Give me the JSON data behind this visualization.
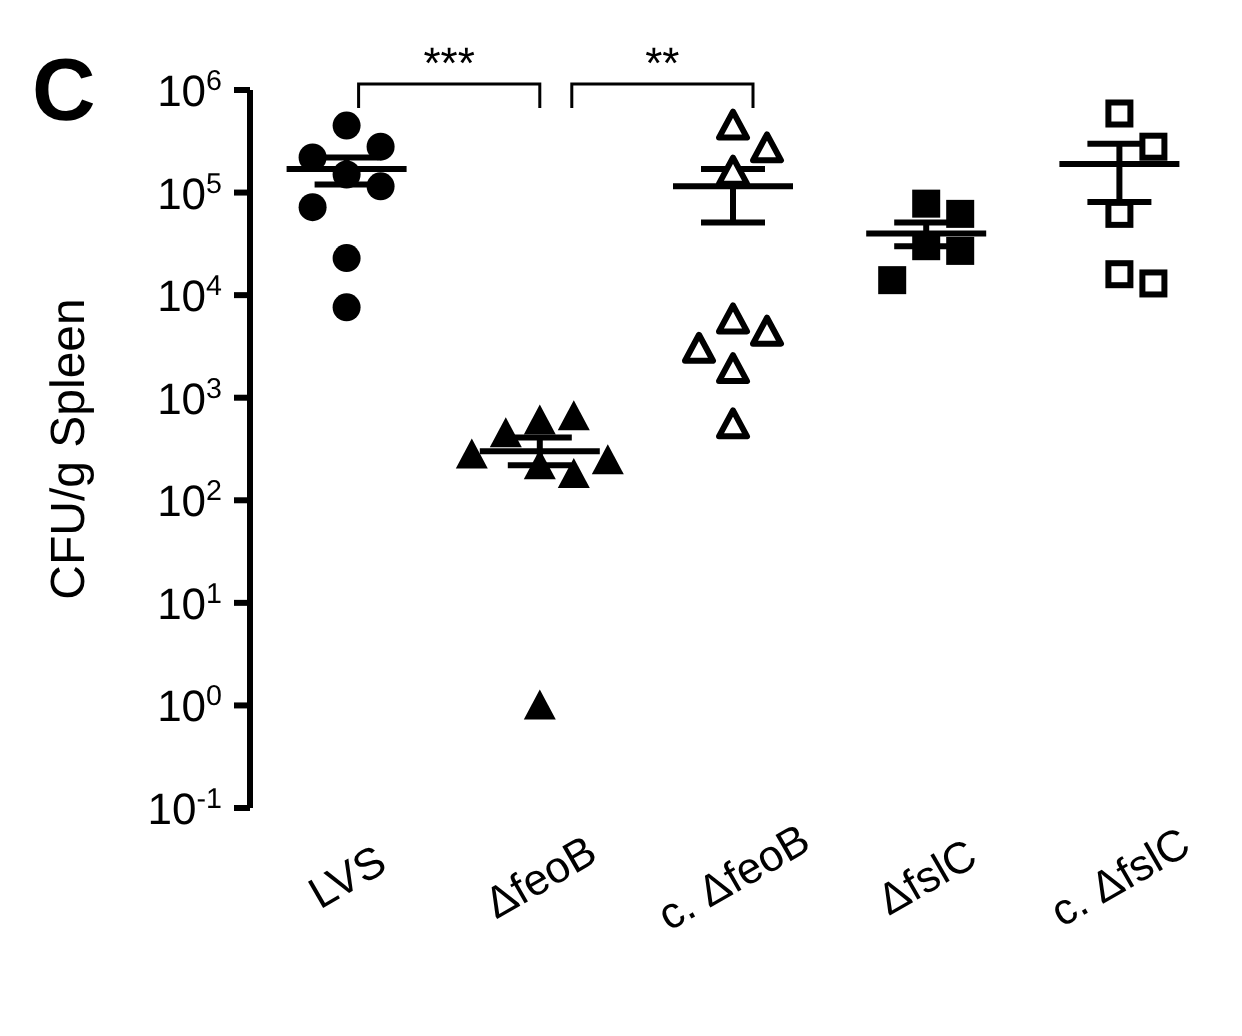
{
  "chart_data": {
    "type": "scatter",
    "title": "C",
    "ylabel": "CFU/g Spleen",
    "categories": [
      "LVS",
      "ΔfeoB",
      "c. ΔfeoB",
      "ΔfslC",
      "c. ΔfslC"
    ],
    "series": [
      {
        "color": "#000000",
        "marker": "circle",
        "x": [
          "LVS",
          "LVS",
          "LVS",
          "LVS",
          "LVS",
          "LVS",
          "LVS",
          "LVS"
        ],
        "values": [
          450000,
          280000,
          220000,
          150000,
          115000,
          72000,
          23000,
          7600
        ]
      },
      {
        "color": "#000000",
        "marker": "triangle",
        "x": [
          "ΔfeoB",
          "ΔfeoB",
          "ΔfeoB",
          "ΔfeoB",
          "ΔfeoB",
          "ΔfeoB",
          "ΔfeoB",
          "ΔfeoB"
        ],
        "values": [
          600,
          660,
          450,
          220,
          180,
          245,
          280,
          1
        ]
      },
      {
        "color": "#000000",
        "marker": "triangle-open",
        "x": [
          "c. ΔfeoB",
          "c. ΔfeoB",
          "c. ΔfeoB",
          "c. ΔfeoB",
          "c. ΔfeoB",
          "c. ΔfeoB",
          "c. ΔfeoB",
          "c. ΔfeoB"
        ],
        "values": [
          450000,
          270000,
          160000,
          5800,
          4400,
          3000,
          1900,
          550
        ]
      },
      {
        "color": "#000000",
        "marker": "square",
        "x": [
          "ΔfslC",
          "ΔfslC",
          "ΔfslC",
          "ΔfslC",
          "ΔfslC"
        ],
        "values": [
          78000,
          62000,
          30000,
          27000,
          14000
        ]
      },
      {
        "color": "#000000",
        "marker": "square-open",
        "x": [
          "c. ΔfslC",
          "c. ΔfslC",
          "c. ΔfslC",
          "c. ΔfslC",
          "c. ΔfslC"
        ],
        "values": [
          590000,
          280000,
          62000,
          16000,
          13000
        ]
      },
      {
        "type": "box",
        "color": "#000000",
        "boxes": [
          {
            "low": 120000,
            "q1": 170000,
            "median": 170000,
            "q3": 170000,
            "high": 220000
          },
          {
            "low": 220,
            "q1": 300,
            "median": 300,
            "q3": 300,
            "high": 410
          },
          {
            "low": 51000,
            "q1": 115000,
            "median": 115000,
            "q3": 115000,
            "high": 170000
          },
          {
            "low": 30000,
            "q1": 40000,
            "median": 40000,
            "q3": 40000,
            "high": 51000
          },
          {
            "low": 81000,
            "q1": 190000,
            "median": 190000,
            "q3": 190000,
            "high": 300000
          }
        ]
      }
    ],
    "log": "y",
    "ylim": [
      0.1,
      1000000
    ],
    "yticks": [
      {
        "value": 0.1,
        "label": "10$^{-1}$"
      },
      {
        "value": 1,
        "label": "10$^{0}$"
      },
      {
        "value": 10,
        "label": "10$^{1}$"
      },
      {
        "value": 100,
        "label": "10$^{2}$"
      },
      {
        "value": 1000,
        "label": "10$^{3}$"
      },
      {
        "value": 10000,
        "label": "10$^{4}$"
      },
      {
        "value": 100000,
        "label": "10$^{5}$"
      },
      {
        "value": 1000000,
        "label": "10$^{6}$"
      }
    ],
    "annotations": [
      "***",
      "**"
    ]
  }
}
